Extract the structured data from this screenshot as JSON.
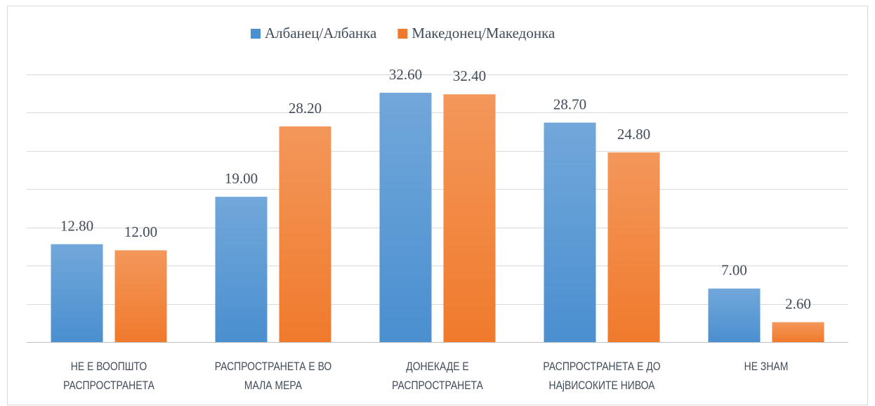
{
  "chart_data": {
    "type": "bar",
    "categories": [
      "НЕ Е ВООПШТО РАСПРОСТРАНЕТА",
      "РАСПРОСТРАНЕТА Е ВО МАЛА МЕРА",
      "ДОНЕКАДЕ Е РАСПРОСТРАНЕТА",
      "РАСПРОСТРАНЕТА Е ДО НАjВИСОКИТЕ НИВОА",
      "НЕ ЗНАМ"
    ],
    "series": [
      {
        "name": "Албанец/Албанка",
        "color": "#4a8fd0",
        "values": [
          12.8,
          19,
          32.6,
          28.7,
          7
        ],
        "value_labels": [
          "12.80",
          "19.00",
          "32.60",
          "28.70",
          "7.00"
        ]
      },
      {
        "name": "Македонец/Македонка",
        "color": "#f07a2c",
        "values": [
          12,
          28.2,
          32.4,
          24.8,
          2.6
        ],
        "value_labels": [
          "12.00",
          "28.20",
          "32.40",
          "24.80",
          "2.60"
        ]
      }
    ],
    "ylim": [
      0,
      35
    ],
    "yticks": [
      0,
      5,
      10,
      15,
      20,
      25,
      30,
      35
    ],
    "grid": true,
    "legend": "top"
  }
}
